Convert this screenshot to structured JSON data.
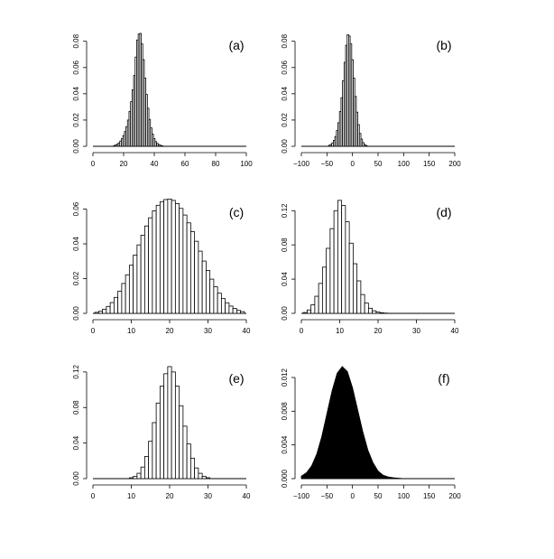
{
  "chart_data": [
    {
      "type": "bar",
      "panel_label": "(a)",
      "x_range": [
        0,
        100
      ],
      "y_range": [
        0,
        0.086
      ],
      "x_ticks": [
        "0",
        "20",
        "40",
        "60",
        "80",
        "100"
      ],
      "y_ticks": [
        "0.00",
        "0.02",
        "0.04",
        "0.06",
        "0.08"
      ],
      "bins": [
        {
          "x": 14,
          "y": 0.0006
        },
        {
          "x": 15,
          "y": 0.001
        },
        {
          "x": 16,
          "y": 0.0016
        },
        {
          "x": 17,
          "y": 0.0026
        },
        {
          "x": 18,
          "y": 0.004
        },
        {
          "x": 19,
          "y": 0.0058
        },
        {
          "x": 20,
          "y": 0.0082
        },
        {
          "x": 21,
          "y": 0.0112
        },
        {
          "x": 22,
          "y": 0.015
        },
        {
          "x": 23,
          "y": 0.02
        },
        {
          "x": 24,
          "y": 0.0265
        },
        {
          "x": 25,
          "y": 0.034
        },
        {
          "x": 26,
          "y": 0.043
        },
        {
          "x": 27,
          "y": 0.054
        },
        {
          "x": 28,
          "y": 0.068
        },
        {
          "x": 29,
          "y": 0.081
        },
        {
          "x": 30,
          "y": 0.0855
        },
        {
          "x": 31,
          "y": 0.086
        },
        {
          "x": 32,
          "y": 0.078
        },
        {
          "x": 33,
          "y": 0.066
        },
        {
          "x": 34,
          "y": 0.052
        },
        {
          "x": 35,
          "y": 0.0395
        },
        {
          "x": 36,
          "y": 0.029
        },
        {
          "x": 37,
          "y": 0.0205
        },
        {
          "x": 38,
          "y": 0.014
        },
        {
          "x": 39,
          "y": 0.0092
        },
        {
          "x": 40,
          "y": 0.0058
        },
        {
          "x": 41,
          "y": 0.0036
        },
        {
          "x": 42,
          "y": 0.0022
        },
        {
          "x": 43,
          "y": 0.0013
        },
        {
          "x": 44,
          "y": 0.0008
        },
        {
          "x": 45,
          "y": 0.0004
        }
      ]
    },
    {
      "type": "bar",
      "panel_label": "(b)",
      "x_range": [
        -100,
        200
      ],
      "y_range": [
        0,
        0.086
      ],
      "x_ticks": [
        "−100",
        "−50",
        "0",
        "50",
        "100",
        "150",
        "200"
      ],
      "y_ticks": [
        "0.00",
        "0.02",
        "0.04",
        "0.06",
        "0.08"
      ],
      "bins": [
        {
          "x": -45,
          "y": 0.0008
        },
        {
          "x": -42,
          "y": 0.0014
        },
        {
          "x": -39,
          "y": 0.0026
        },
        {
          "x": -36,
          "y": 0.0045
        },
        {
          "x": -33,
          "y": 0.0075
        },
        {
          "x": -30,
          "y": 0.012
        },
        {
          "x": -27,
          "y": 0.018
        },
        {
          "x": -24,
          "y": 0.0265
        },
        {
          "x": -21,
          "y": 0.037
        },
        {
          "x": -18,
          "y": 0.05
        },
        {
          "x": -15,
          "y": 0.064
        },
        {
          "x": -12,
          "y": 0.077
        },
        {
          "x": -9,
          "y": 0.085
        },
        {
          "x": -6,
          "y": 0.084
        },
        {
          "x": -3,
          "y": 0.078
        },
        {
          "x": 0,
          "y": 0.066
        },
        {
          "x": 3,
          "y": 0.052
        },
        {
          "x": 6,
          "y": 0.038
        },
        {
          "x": 9,
          "y": 0.026
        },
        {
          "x": 12,
          "y": 0.0165
        },
        {
          "x": 15,
          "y": 0.0098
        },
        {
          "x": 18,
          "y": 0.0055
        },
        {
          "x": 21,
          "y": 0.0028
        },
        {
          "x": 24,
          "y": 0.0013
        },
        {
          "x": 27,
          "y": 0.0006
        }
      ]
    },
    {
      "type": "bar",
      "panel_label": "(c)",
      "x_range": [
        0,
        40
      ],
      "y_range": [
        0,
        0.066
      ],
      "x_ticks": [
        "0",
        "10",
        "20",
        "30",
        "40"
      ],
      "y_ticks": [
        "0.00",
        "0.02",
        "0.04",
        "0.06"
      ],
      "bins": [
        {
          "x": 1,
          "y": 0.0006
        },
        {
          "x": 2,
          "y": 0.0012
        },
        {
          "x": 3,
          "y": 0.0024
        },
        {
          "x": 4,
          "y": 0.004
        },
        {
          "x": 5,
          "y": 0.0062
        },
        {
          "x": 6,
          "y": 0.0092
        },
        {
          "x": 7,
          "y": 0.0128
        },
        {
          "x": 8,
          "y": 0.0172
        },
        {
          "x": 9,
          "y": 0.0222
        },
        {
          "x": 10,
          "y": 0.0277
        },
        {
          "x": 11,
          "y": 0.0335
        },
        {
          "x": 12,
          "y": 0.0394
        },
        {
          "x": 13,
          "y": 0.045
        },
        {
          "x": 14,
          "y": 0.0503
        },
        {
          "x": 15,
          "y": 0.055
        },
        {
          "x": 16,
          "y": 0.059
        },
        {
          "x": 17,
          "y": 0.0622
        },
        {
          "x": 18,
          "y": 0.0643
        },
        {
          "x": 19,
          "y": 0.0655
        },
        {
          "x": 20,
          "y": 0.0658
        },
        {
          "x": 21,
          "y": 0.065
        },
        {
          "x": 22,
          "y": 0.0632
        },
        {
          "x": 23,
          "y": 0.0604
        },
        {
          "x": 24,
          "y": 0.0566
        },
        {
          "x": 25,
          "y": 0.0521
        },
        {
          "x": 26,
          "y": 0.047
        },
        {
          "x": 27,
          "y": 0.0415
        },
        {
          "x": 28,
          "y": 0.0358
        },
        {
          "x": 29,
          "y": 0.0301
        },
        {
          "x": 30,
          "y": 0.0247
        },
        {
          "x": 31,
          "y": 0.0197
        },
        {
          "x": 32,
          "y": 0.0153
        },
        {
          "x": 33,
          "y": 0.0116
        },
        {
          "x": 34,
          "y": 0.0085
        },
        {
          "x": 35,
          "y": 0.0061
        },
        {
          "x": 36,
          "y": 0.0042
        },
        {
          "x": 37,
          "y": 0.0028
        },
        {
          "x": 38,
          "y": 0.0017
        },
        {
          "x": 39,
          "y": 0.001
        }
      ]
    },
    {
      "type": "bar",
      "panel_label": "(d)",
      "x_range": [
        0,
        40
      ],
      "y_range": [
        0,
        0.134
      ],
      "x_ticks": [
        "0",
        "10",
        "20",
        "30",
        "40"
      ],
      "y_ticks": [
        "0.00",
        "0.04",
        "0.08",
        "0.12"
      ],
      "bins": [
        {
          "x": 1,
          "y": 0.001
        },
        {
          "x": 2,
          "y": 0.004
        },
        {
          "x": 3,
          "y": 0.01
        },
        {
          "x": 4,
          "y": 0.02
        },
        {
          "x": 5,
          "y": 0.035
        },
        {
          "x": 6,
          "y": 0.054
        },
        {
          "x": 7,
          "y": 0.076
        },
        {
          "x": 8,
          "y": 0.099
        },
        {
          "x": 9,
          "y": 0.12
        },
        {
          "x": 10,
          "y": 0.132
        },
        {
          "x": 11,
          "y": 0.126
        },
        {
          "x": 12,
          "y": 0.107
        },
        {
          "x": 13,
          "y": 0.082
        },
        {
          "x": 14,
          "y": 0.058
        },
        {
          "x": 15,
          "y": 0.038
        },
        {
          "x": 16,
          "y": 0.022
        },
        {
          "x": 17,
          "y": 0.012
        },
        {
          "x": 18,
          "y": 0.006
        },
        {
          "x": 19,
          "y": 0.003
        },
        {
          "x": 20,
          "y": 0.0015
        },
        {
          "x": 21,
          "y": 0.0007
        },
        {
          "x": 22,
          "y": 0.0003
        }
      ]
    },
    {
      "type": "bar",
      "panel_label": "(e)",
      "x_range": [
        0,
        40
      ],
      "y_range": [
        0,
        0.128
      ],
      "x_ticks": [
        "0",
        "10",
        "20",
        "30",
        "40"
      ],
      "y_ticks": [
        "0.00",
        "0.04",
        "0.08",
        "0.12"
      ],
      "bins": [
        {
          "x": 10,
          "y": 0.001
        },
        {
          "x": 11,
          "y": 0.0025
        },
        {
          "x": 12,
          "y": 0.006
        },
        {
          "x": 13,
          "y": 0.013
        },
        {
          "x": 14,
          "y": 0.025
        },
        {
          "x": 15,
          "y": 0.042
        },
        {
          "x": 16,
          "y": 0.063
        },
        {
          "x": 17,
          "y": 0.085
        },
        {
          "x": 18,
          "y": 0.104
        },
        {
          "x": 19,
          "y": 0.118
        },
        {
          "x": 20,
          "y": 0.126
        },
        {
          "x": 21,
          "y": 0.12
        },
        {
          "x": 22,
          "y": 0.104
        },
        {
          "x": 23,
          "y": 0.082
        },
        {
          "x": 24,
          "y": 0.059
        },
        {
          "x": 25,
          "y": 0.039
        },
        {
          "x": 26,
          "y": 0.023
        },
        {
          "x": 27,
          "y": 0.012
        },
        {
          "x": 28,
          "y": 0.006
        },
        {
          "x": 29,
          "y": 0.0025
        },
        {
          "x": 30,
          "y": 0.001
        }
      ]
    },
    {
      "type": "area",
      "panel_label": "(f)",
      "x_range": [
        -100,
        200
      ],
      "y_range": [
        0,
        0.0135
      ],
      "x_ticks": [
        "−100",
        "−50",
        "0",
        "50",
        "100",
        "150",
        "200"
      ],
      "y_ticks": [
        "0.000",
        "0.004",
        "0.008",
        "0.012"
      ],
      "points": [
        {
          "x": -100,
          "y": 0.0003
        },
        {
          "x": -90,
          "y": 0.0007
        },
        {
          "x": -80,
          "y": 0.0015
        },
        {
          "x": -70,
          "y": 0.0029
        },
        {
          "x": -60,
          "y": 0.005
        },
        {
          "x": -50,
          "y": 0.0077
        },
        {
          "x": -40,
          "y": 0.0104
        },
        {
          "x": -30,
          "y": 0.0125
        },
        {
          "x": -20,
          "y": 0.0133
        },
        {
          "x": -10,
          "y": 0.0127
        },
        {
          "x": 0,
          "y": 0.0108
        },
        {
          "x": 10,
          "y": 0.0082
        },
        {
          "x": 20,
          "y": 0.0056
        },
        {
          "x": 30,
          "y": 0.0034
        },
        {
          "x": 40,
          "y": 0.0019
        },
        {
          "x": 50,
          "y": 0.0009
        },
        {
          "x": 60,
          "y": 0.0004
        },
        {
          "x": 70,
          "y": 0.0002
        },
        {
          "x": 80,
          "y": 0.0001
        },
        {
          "x": 100,
          "y": 0
        }
      ]
    }
  ]
}
